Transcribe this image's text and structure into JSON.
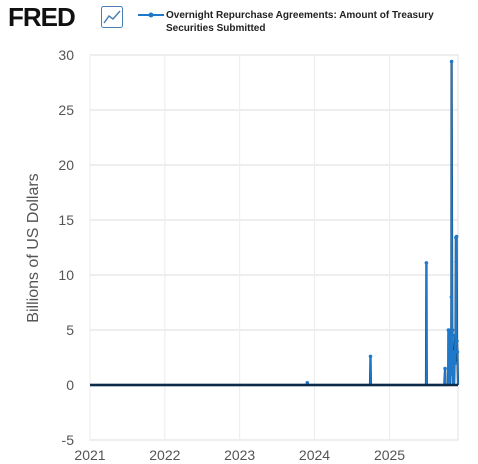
{
  "header": {
    "logo_text": "FRED",
    "legend_line1": "Overnight Repurchase Agreements: Amount of Treasury",
    "legend_line2": "Securities Submitted",
    "series_color": "#1f78c8"
  },
  "chart_data": {
    "type": "line",
    "title": "",
    "series": [
      {
        "name": "Overnight Repurchase Agreements: Amount of Treasury Securities Submitted",
        "color": "#1f78c8",
        "points": [
          [
            "2021-01-01",
            0
          ],
          [
            "2023-11-25",
            0
          ],
          [
            "2023-11-27",
            0.2
          ],
          [
            "2023-11-29",
            0
          ],
          [
            "2024-09-28",
            0
          ],
          [
            "2024-09-30",
            2.6
          ],
          [
            "2024-10-02",
            0
          ],
          [
            "2025-06-28",
            0
          ],
          [
            "2025-06-30",
            11.1
          ],
          [
            "2025-07-02",
            0
          ],
          [
            "2025-09-25",
            0
          ],
          [
            "2025-09-29",
            1.5
          ],
          [
            "2025-10-01",
            0
          ],
          [
            "2025-10-14",
            0
          ],
          [
            "2025-10-15",
            5.0
          ],
          [
            "2025-10-17",
            0
          ],
          [
            "2025-10-20",
            4.8
          ],
          [
            "2025-10-23",
            0
          ],
          [
            "2025-10-27",
            5.0
          ],
          [
            "2025-10-29",
            1.0
          ],
          [
            "2025-10-30",
            8.0
          ],
          [
            "2025-10-31",
            29.4
          ],
          [
            "2025-11-03",
            3.0
          ],
          [
            "2025-11-04",
            5.0
          ],
          [
            "2025-11-06",
            0
          ],
          [
            "2025-11-10",
            3.0
          ],
          [
            "2025-11-12",
            0
          ],
          [
            "2025-11-17",
            4.5
          ],
          [
            "2025-11-19",
            2.0
          ],
          [
            "2025-11-21",
            13.4
          ],
          [
            "2025-11-22",
            11.2
          ],
          [
            "2025-11-24",
            13.5
          ],
          [
            "2025-11-26",
            4.0
          ],
          [
            "2025-11-28",
            3.0
          ],
          [
            "2025-12-01",
            0
          ]
        ]
      }
    ],
    "xlabel": "",
    "ylabel": "Billions of US Dollars",
    "xlim": [
      "2021-01-01",
      "2025-12-01"
    ],
    "ylim": [
      -5,
      30
    ],
    "yticks": [
      -5,
      0,
      5,
      10,
      15,
      20,
      25,
      30
    ],
    "xticks": [
      "2021",
      "2022",
      "2023",
      "2024",
      "2025"
    ],
    "grid": true,
    "legend": "top"
  }
}
